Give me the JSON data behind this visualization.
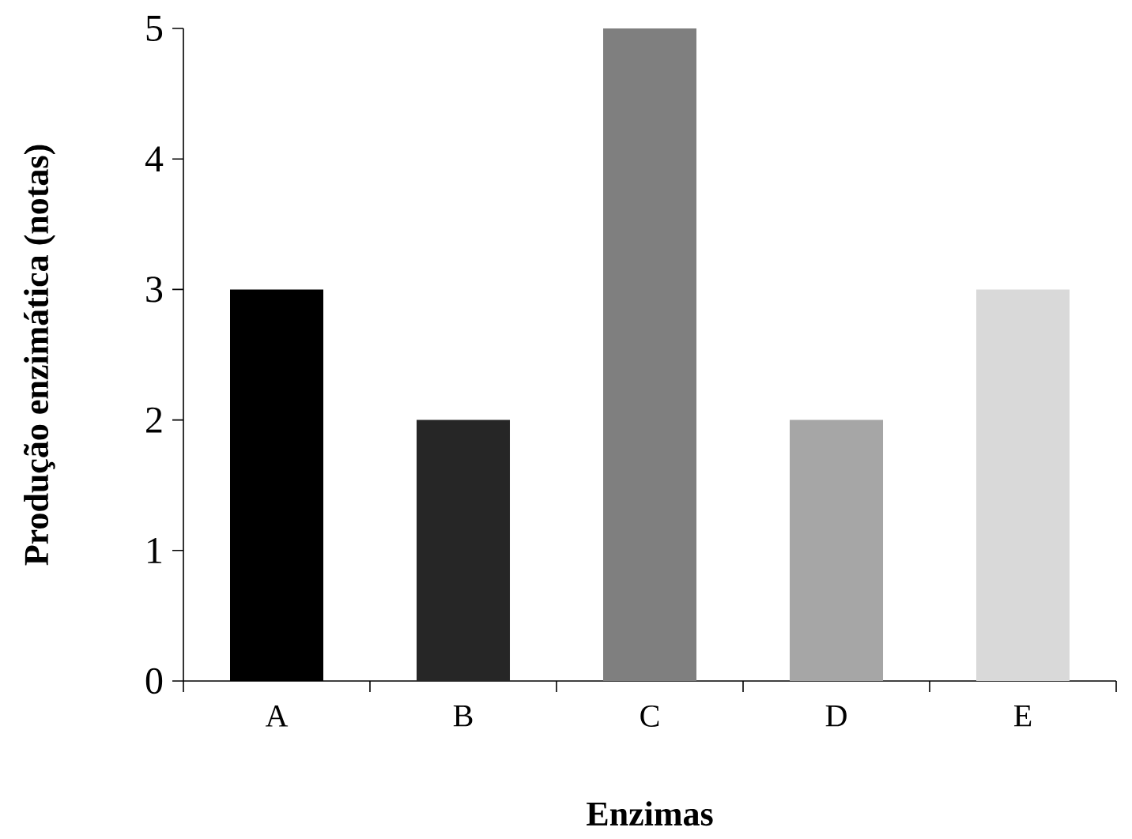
{
  "chart_data": {
    "type": "bar",
    "xlabel": "Enzimas",
    "ylabel": "Produção enzimática (notas)",
    "categories": [
      "A",
      "B",
      "C",
      "D",
      "E"
    ],
    "values": [
      3,
      2,
      5,
      2,
      3
    ],
    "colors": [
      "#000000",
      "#262626",
      "#7f7f7f",
      "#a6a6a6",
      "#d9d9d9"
    ],
    "ylim": [
      0,
      5
    ],
    "yticks": [
      0,
      1,
      2,
      3,
      4,
      5
    ]
  }
}
